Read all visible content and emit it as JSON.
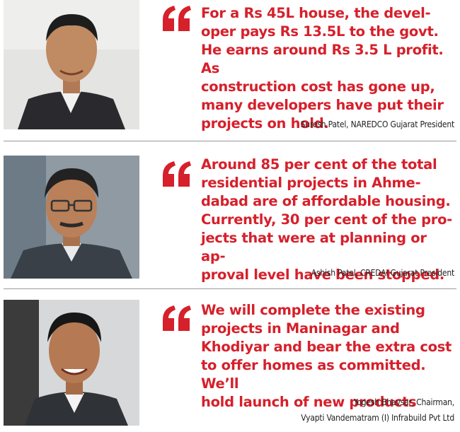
{
  "quotes": [
    {
      "text_lines": [
        "For a Rs 45L house, the devel-",
        "oper pays Rs 13.5L to the govt.",
        "He earns around Rs 3.5 L profit. As",
        "construction cost has gone up,",
        "many developers have put their",
        "projects on hold."
      ],
      "attribution": [
        "Suresh Patel, NAREDCO Gujarat President"
      ]
    },
    {
      "text_lines": [
        "Around 85 per cent of the total",
        "residential projects in Ahme-",
        "dabad are of affordable housing.",
        "Currently, 30 per cent of the pro-",
        "jects that were at planning or ap-",
        "proval level have been stopped."
      ],
      "attribution": [
        "Ashish Patel, CREDAI Gujarat President"
      ]
    },
    {
      "text_lines": [
        "We will complete the existing",
        "projects in Maninagar and",
        "Khodiyar and bear the extra cost",
        "to offer homes as committed. We’ll",
        "hold launch of new products"
      ],
      "attribution": [
        "Yogesh Bhavsar, Chairman,",
        "Vyapti Vandematram (I) Infrabuild Pvt Ltd"
      ]
    }
  ],
  "colors": {
    "quote_text": "#d6202b",
    "quote_mark": "#d6202b",
    "attribution": "#222222",
    "divider": "#9a9a9a"
  },
  "icons": {
    "quote_mark": "opening-quote-icon",
    "portrait": "person-portrait"
  }
}
